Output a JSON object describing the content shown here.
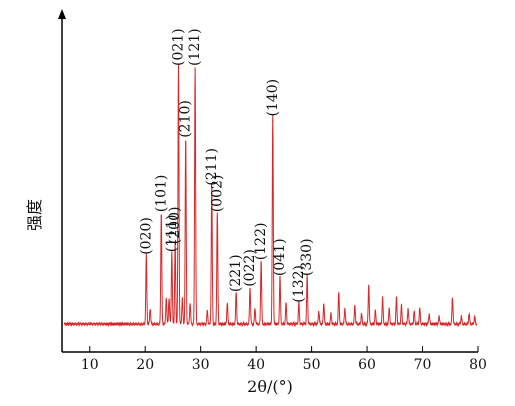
{
  "chart_data": {
    "type": "line",
    "title": "",
    "xlabel": "2θ/(°)",
    "ylabel": "强度",
    "xlim": [
      5,
      80
    ],
    "ylim": [
      0,
      100
    ],
    "x_ticks": [
      "10",
      "20",
      "30",
      "40",
      "50",
      "60",
      "70",
      "80"
    ],
    "y_ticks": [],
    "grid": false,
    "legend": "none",
    "colors": {
      "line": "#d62728",
      "axis": "#000000",
      "text": "#111111"
    },
    "baseline": 1.5,
    "peaks": [
      {
        "x": 20.2,
        "y": 26,
        "label": "(020)"
      },
      {
        "x": 20.9,
        "y": 6,
        "label": ""
      },
      {
        "x": 22.9,
        "y": 42,
        "label": "(101)"
      },
      {
        "x": 23.8,
        "y": 10,
        "label": ""
      },
      {
        "x": 24.3,
        "y": 10,
        "label": ""
      },
      {
        "x": 24.8,
        "y": 27,
        "label": "(111)"
      },
      {
        "x": 25.4,
        "y": 30,
        "label": "(200)"
      },
      {
        "x": 26.0,
        "y": 97,
        "label": "(021)"
      },
      {
        "x": 26.7,
        "y": 10,
        "label": ""
      },
      {
        "x": 27.3,
        "y": 70,
        "label": "(210)"
      },
      {
        "x": 28.1,
        "y": 8,
        "label": ""
      },
      {
        "x": 29.0,
        "y": 97,
        "label": "(121)"
      },
      {
        "x": 31.2,
        "y": 5,
        "label": ""
      },
      {
        "x": 32.0,
        "y": 52,
        "label": "(211)"
      },
      {
        "x": 33.0,
        "y": 42,
        "label": "(002)"
      },
      {
        "x": 34.8,
        "y": 8,
        "label": ""
      },
      {
        "x": 36.4,
        "y": 12,
        "label": "(221)"
      },
      {
        "x": 38.9,
        "y": 14,
        "label": "(022)"
      },
      {
        "x": 39.8,
        "y": 6,
        "label": ""
      },
      {
        "x": 40.9,
        "y": 24,
        "label": "(122)"
      },
      {
        "x": 43.0,
        "y": 78,
        "label": "(140)"
      },
      {
        "x": 44.3,
        "y": 18,
        "label": "(041)"
      },
      {
        "x": 45.4,
        "y": 8,
        "label": ""
      },
      {
        "x": 47.7,
        "y": 8,
        "label": "(132)"
      },
      {
        "x": 49.2,
        "y": 18,
        "label": "(330)"
      },
      {
        "x": 51.3,
        "y": 5,
        "label": ""
      },
      {
        "x": 52.2,
        "y": 8,
        "label": ""
      },
      {
        "x": 53.5,
        "y": 4,
        "label": ""
      },
      {
        "x": 54.9,
        "y": 12,
        "label": ""
      },
      {
        "x": 56.0,
        "y": 6,
        "label": ""
      },
      {
        "x": 57.8,
        "y": 7,
        "label": ""
      },
      {
        "x": 59.0,
        "y": 4,
        "label": ""
      },
      {
        "x": 60.3,
        "y": 15,
        "label": ""
      },
      {
        "x": 61.5,
        "y": 5,
        "label": ""
      },
      {
        "x": 62.8,
        "y": 10,
        "label": ""
      },
      {
        "x": 64.0,
        "y": 6,
        "label": ""
      },
      {
        "x": 65.3,
        "y": 10,
        "label": ""
      },
      {
        "x": 66.2,
        "y": 7,
        "label": ""
      },
      {
        "x": 67.4,
        "y": 6,
        "label": ""
      },
      {
        "x": 68.5,
        "y": 5,
        "label": ""
      },
      {
        "x": 69.5,
        "y": 6,
        "label": ""
      },
      {
        "x": 71.2,
        "y": 4,
        "label": ""
      },
      {
        "x": 73.0,
        "y": 3,
        "label": ""
      },
      {
        "x": 75.4,
        "y": 10,
        "label": ""
      },
      {
        "x": 77.0,
        "y": 3,
        "label": ""
      },
      {
        "x": 78.4,
        "y": 4,
        "label": ""
      },
      {
        "x": 79.4,
        "y": 3,
        "label": ""
      }
    ]
  }
}
